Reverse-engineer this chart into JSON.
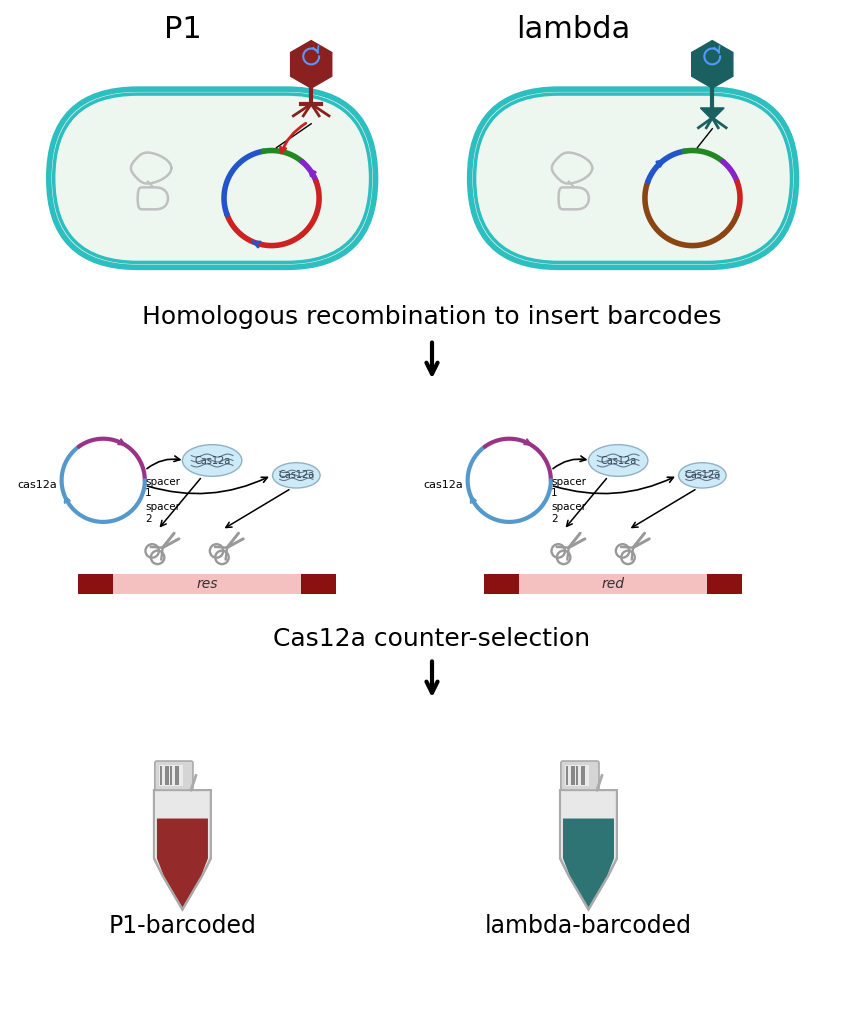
{
  "p1_color": "#8B2020",
  "lambda_color": "#1a6060",
  "cell_fill": "#eef7ef",
  "cell_border_outer": "#2dbfbf",
  "cell_border_inner": "#2dbfbf",
  "section1_label": "Homologous recombination to insert barcodes",
  "section2_label": "Cas12a counter-selection",
  "p1_label": "P1",
  "lambda_label": "lambda",
  "p1_tube_label": "P1-barcoded",
  "lambda_tube_label": "lambda-barcoded",
  "bg_color": "#ffffff",
  "arrow_color": "#222222",
  "dna_bar_dark": "#8B1010",
  "dna_bar_light": "#f5c0c0",
  "chr_color": "#c0c0c0",
  "cas12a_ring_blue": "#5599cc",
  "cas12a_ring_purple": "#993388",
  "crRNA_color": "#c8e8f8",
  "scissor_color": "#999999"
}
